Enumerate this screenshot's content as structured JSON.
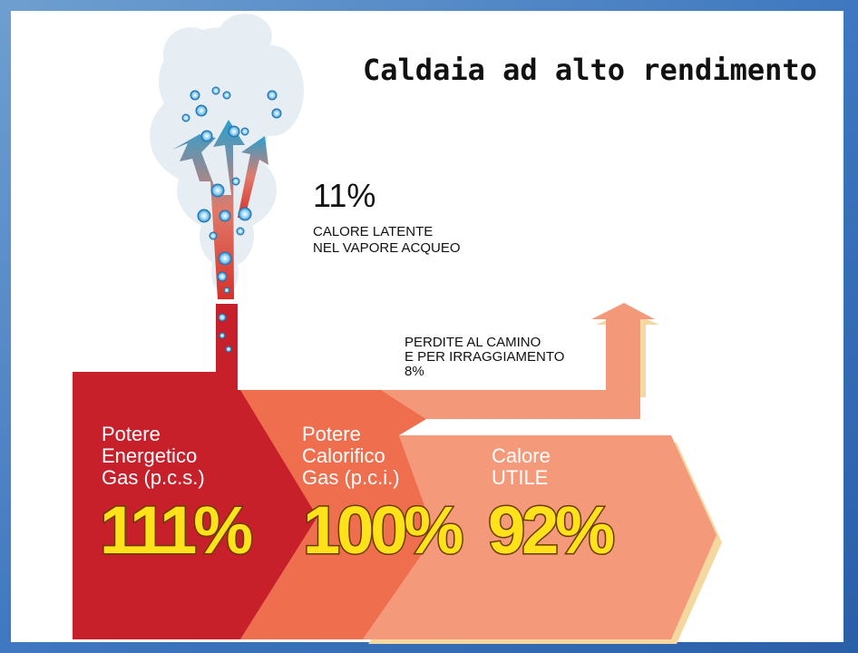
{
  "title": "Caldaia ad alto rendimento",
  "steam": {
    "value": "11%",
    "lines": [
      "CALORE LATENTE",
      "NEL VAPORE ACQUEO"
    ]
  },
  "losses": {
    "lines": [
      "PERDITE AL CAMINO",
      "E PER IRRAGGIAMENTO",
      "8%"
    ]
  },
  "blocks": [
    {
      "lines": [
        "Potere",
        "Energetico",
        "Gas (p.c.s.)"
      ],
      "value": "111%"
    },
    {
      "lines": [
        "Potere",
        "Calorifico",
        "Gas (p.c.i.)"
      ],
      "value": "100%"
    },
    {
      "lines": [
        "Calore",
        "UTILE"
      ],
      "value": "92%"
    }
  ]
}
